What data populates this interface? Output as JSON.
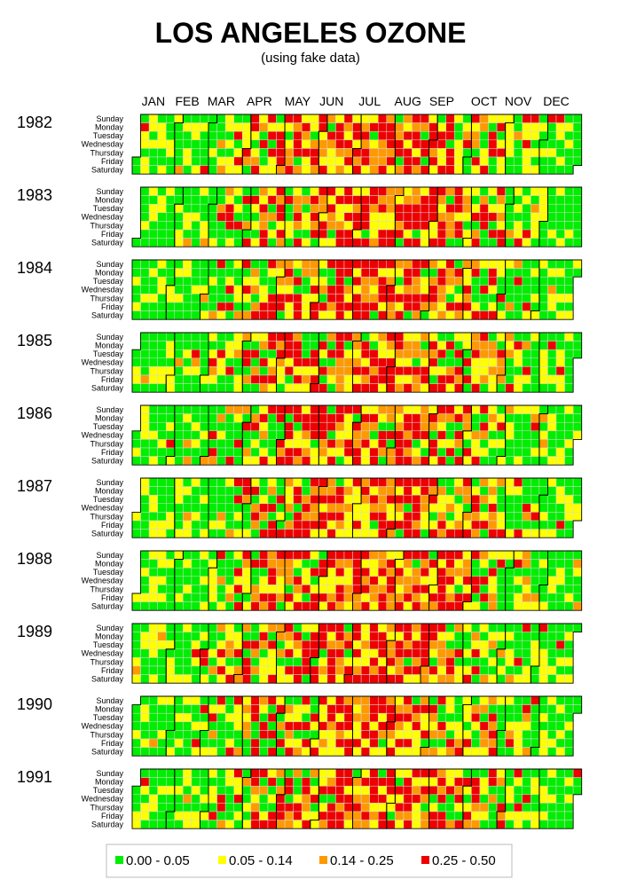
{
  "chart_data": {
    "type": "heatmap",
    "title": "LOS ANGELES OZONE",
    "subtitle": "(using fake data)",
    "months": [
      "JAN",
      "FEB",
      "MAR",
      "APR",
      "MAY",
      "JUN",
      "JUL",
      "AUG",
      "SEP",
      "OCT",
      "NOV",
      "DEC"
    ],
    "weekdays": [
      "Sunday",
      "Monday",
      "Tuesday",
      "Wednesday",
      "Thursday",
      "Friday",
      "Saturday"
    ],
    "years": [
      "1982",
      "1983",
      "1984",
      "1985",
      "1986",
      "1987",
      "1988",
      "1989",
      "1990",
      "1991"
    ],
    "legend": [
      {
        "label": "0.00 - 0.05",
        "color": "#00ee00"
      },
      {
        "label": "0.05 - 0.14",
        "color": "#ffff00"
      },
      {
        "label": "0.14 - 0.25",
        "color": "#ff9900"
      },
      {
        "label": "0.25 - 0.50",
        "color": "#ee0000"
      }
    ]
  }
}
